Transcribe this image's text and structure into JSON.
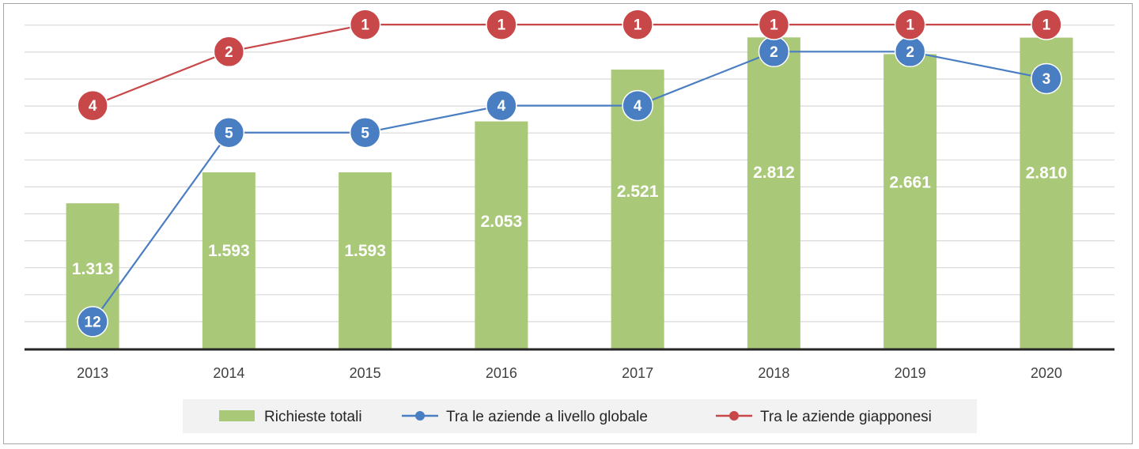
{
  "chart_data": {
    "type": "bar",
    "categories": [
      "2013",
      "2014",
      "2015",
      "2016",
      "2017",
      "2018",
      "2019",
      "2020"
    ],
    "series": [
      {
        "name": "Richieste totali",
        "kind": "bar",
        "color": "#a9c878",
        "values": [
          1313,
          1593,
          1593,
          2053,
          2521,
          2812,
          2661,
          2810
        ],
        "labels": [
          "1.313",
          "1.593",
          "1.593",
          "2.053",
          "2.521",
          "2.812",
          "2.661",
          "2.810"
        ]
      },
      {
        "name": "Tra le aziende a livello globale",
        "kind": "line",
        "color": "#4a7ec2",
        "values": [
          12,
          5,
          5,
          4,
          4,
          2,
          2,
          3
        ]
      },
      {
        "name": "Tra le aziende giapponesi",
        "kind": "line",
        "color": "#c8484a",
        "values": [
          4,
          2,
          1,
          1,
          1,
          1,
          1,
          1
        ]
      }
    ],
    "grid": true,
    "legend_position": "bottom",
    "bar_axis_range": [
      0,
      3000
    ],
    "rank_axis_range": [
      13,
      0
    ]
  }
}
